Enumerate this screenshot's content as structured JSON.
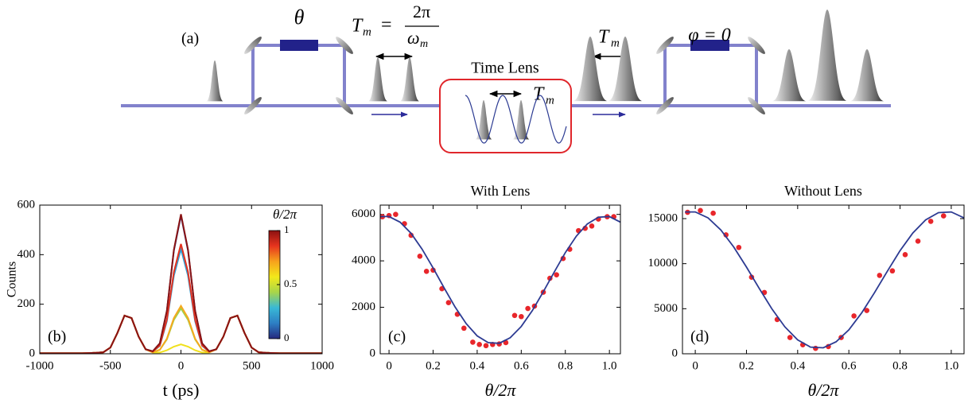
{
  "diagram": {
    "panel": "(a)",
    "theta": "θ",
    "formula": {
      "lhs": "T",
      "lhs_sub": "m",
      "equals": "=",
      "numerator": "2π",
      "denominator": "ω",
      "denominator_sub": "m"
    },
    "lens_title": "Time Lens",
    "lens_period": {
      "base": "T",
      "sub": "m"
    },
    "output_period": {
      "base": "T",
      "sub": "m"
    },
    "phase": "φ = 0"
  },
  "chart_data": [
    {
      "type": "line",
      "panel_label": "(b)",
      "xlabel": "t (ps)",
      "ylabel": "Counts",
      "x": [
        -1000,
        -950,
        -900,
        -850,
        -800,
        -750,
        -700,
        -650,
        -600,
        -550,
        -500,
        -450,
        -400,
        -350,
        -300,
        -250,
        -200,
        -150,
        -100,
        -50,
        0,
        50,
        100,
        150,
        200,
        250,
        300,
        350,
        400,
        450,
        500,
        550,
        600,
        650,
        700,
        750,
        800,
        850,
        900,
        950,
        1000
      ],
      "xlim": [
        -1000,
        1000
      ],
      "xticks": [
        -1000,
        -500,
        0,
        500,
        1000
      ],
      "ylim": [
        0,
        600
      ],
      "yticks": [
        0,
        200,
        400,
        600
      ],
      "colorbar": {
        "label": "θ/2π",
        "ticks": [
          0,
          0.5,
          1
        ],
        "colors": [
          "#262a7e",
          "#2d7fc4",
          "#39b9d6",
          "#a8d54a",
          "#f3e81a",
          "#f7a21c",
          "#e7341e",
          "#8b1111"
        ]
      },
      "series": [
        {
          "color": "#2a2c80",
          "values": [
            2,
            2,
            2,
            2,
            2,
            2,
            2,
            3,
            4,
            6,
            25,
            84,
            154,
            144,
            69,
            18,
            10,
            42,
            173,
            416,
            558,
            416,
            173,
            42,
            10,
            18,
            69,
            144,
            154,
            84,
            25,
            6,
            4,
            3,
            2,
            2,
            2,
            2,
            2,
            2,
            2
          ]
        },
        {
          "color": "#2e9fd6",
          "values": [
            2,
            2,
            2,
            2,
            2,
            2,
            2,
            3,
            4,
            6,
            25,
            84,
            154,
            144,
            69,
            18,
            9,
            32,
            132,
            315,
            423,
            315,
            132,
            32,
            9,
            18,
            69,
            144,
            154,
            84,
            25,
            6,
            4,
            3,
            2,
            2,
            2,
            2,
            2,
            2,
            2
          ]
        },
        {
          "color": "#9fd04c",
          "values": [
            2,
            2,
            2,
            2,
            2,
            2,
            2,
            3,
            4,
            6,
            25,
            84,
            154,
            144,
            69,
            18,
            6,
            16,
            58,
            137,
            183,
            137,
            58,
            16,
            6,
            18,
            69,
            144,
            154,
            84,
            25,
            6,
            4,
            3,
            2,
            2,
            2,
            2,
            2,
            2,
            2
          ]
        },
        {
          "color": "#f0e01c",
          "values": [
            2,
            2,
            2,
            2,
            2,
            2,
            2,
            3,
            4,
            6,
            25,
            84,
            154,
            144,
            69,
            18,
            5,
            5,
            14,
            29,
            38,
            29,
            14,
            5,
            5,
            18,
            69,
            144,
            154,
            84,
            25,
            6,
            4,
            3,
            2,
            2,
            2,
            2,
            2,
            2,
            2
          ]
        },
        {
          "color": "#f6a91e",
          "values": [
            2,
            2,
            2,
            2,
            2,
            2,
            2,
            3,
            4,
            6,
            25,
            84,
            154,
            144,
            69,
            18,
            6,
            16,
            61,
            144,
            193,
            144,
            61,
            16,
            6,
            18,
            69,
            144,
            154,
            84,
            25,
            6,
            4,
            3,
            2,
            2,
            2,
            2,
            2,
            2,
            2
          ]
        },
        {
          "color": "#e5321f",
          "values": [
            2,
            2,
            2,
            2,
            2,
            2,
            2,
            3,
            4,
            6,
            25,
            84,
            154,
            144,
            69,
            18,
            9,
            34,
            138,
            330,
            443,
            330,
            138,
            34,
            9,
            18,
            69,
            144,
            154,
            84,
            25,
            6,
            4,
            3,
            2,
            2,
            2,
            2,
            2,
            2,
            2
          ]
        },
        {
          "color": "#8a1414",
          "values": [
            2,
            2,
            2,
            2,
            2,
            2,
            2,
            3,
            4,
            6,
            25,
            84,
            154,
            144,
            69,
            18,
            10,
            42,
            174,
            420,
            563,
            420,
            174,
            42,
            10,
            18,
            69,
            144,
            154,
            84,
            25,
            6,
            4,
            3,
            2,
            2,
            2,
            2,
            2,
            2,
            2
          ]
        }
      ]
    },
    {
      "type": "scatter",
      "title": "With Lens",
      "panel_label": "(c)",
      "xlabel": "θ/2π",
      "xlim": [
        -0.04,
        1.05
      ],
      "xticks": [
        0,
        0.2,
        0.4,
        0.6,
        0.8,
        {
          "value": 1,
          "label": "1.0"
        }
      ],
      "ylim": [
        0,
        6400
      ],
      "yticks": [
        0,
        2000,
        4000,
        6000
      ],
      "series": [
        {
          "mode": "markers",
          "color": "#e8262b",
          "x": [
            -0.03,
            0.0,
            0.03,
            0.07,
            0.1,
            0.14,
            0.17,
            0.2,
            0.24,
            0.27,
            0.31,
            0.34,
            0.38,
            0.41,
            0.44,
            0.47,
            0.5,
            0.53,
            0.57,
            0.6,
            0.63,
            0.66,
            0.7,
            0.73,
            0.76,
            0.79,
            0.82,
            0.86,
            0.89,
            0.92,
            0.95,
            0.99,
            1.02
          ],
          "values": [
            5900,
            5950,
            6000,
            5600,
            5100,
            4200,
            3550,
            3600,
            2800,
            2200,
            1700,
            1100,
            500,
            400,
            350,
            400,
            420,
            480,
            1650,
            1600,
            1950,
            2050,
            2650,
            3250,
            3400,
            4100,
            4500,
            5300,
            5400,
            5500,
            5800,
            5900,
            5900
          ]
        },
        {
          "mode": "line",
          "color": "#2c3a92",
          "x": [
            -0.04,
            0,
            0.05,
            0.1,
            0.15,
            0.2,
            0.25,
            0.3,
            0.35,
            0.4,
            0.45,
            0.5,
            0.55,
            0.6,
            0.65,
            0.7,
            0.75,
            0.8,
            0.85,
            0.9,
            0.95,
            1.0,
            1.05
          ],
          "values": [
            5908,
            5908,
            5669,
            5185,
            4506,
            3694,
            2836,
            2008,
            1296,
            771,
            480,
            452,
            691,
            1175,
            1855,
            2666,
            3524,
            4352,
            5064,
            5589,
            5881,
            5908,
            5669
          ]
        }
      ]
    },
    {
      "type": "scatter",
      "title": "Without Lens",
      "panel_label": "(d)",
      "xlabel": "θ/2π",
      "xlim": [
        -0.05,
        1.05
      ],
      "xticks": [
        0,
        0.2,
        0.4,
        0.6,
        0.8,
        {
          "value": 1,
          "label": "1.0"
        }
      ],
      "ylim": [
        0,
        16500
      ],
      "yticks": [
        0,
        5000,
        10000,
        15000
      ],
      "series": [
        {
          "mode": "markers",
          "color": "#e8262b",
          "x": [
            -0.03,
            0.02,
            0.07,
            0.12,
            0.17,
            0.22,
            0.27,
            0.32,
            0.37,
            0.42,
            0.47,
            0.52,
            0.57,
            0.62,
            0.67,
            0.72,
            0.77,
            0.82,
            0.87,
            0.92,
            0.97
          ],
          "values": [
            15700,
            15900,
            15600,
            13200,
            11800,
            8500,
            6800,
            3800,
            1800,
            1000,
            600,
            800,
            1800,
            4200,
            4800,
            8700,
            9200,
            11000,
            12500,
            14700,
            15300
          ]
        },
        {
          "mode": "line",
          "color": "#2c3a92",
          "x": [
            -0.04,
            0,
            0.05,
            0.1,
            0.15,
            0.2,
            0.25,
            0.3,
            0.35,
            0.4,
            0.45,
            0.5,
            0.55,
            0.6,
            0.65,
            0.7,
            0.75,
            0.8,
            0.85,
            0.9,
            0.95,
            1.0,
            1.05
          ],
          "values": [
            15739,
            15739,
            15078,
            13740,
            11863,
            9621,
            7250,
            4962,
            2994,
            1542,
            737,
            661,
            1322,
            2660,
            4537,
            6779,
            9150,
            11438,
            13406,
            14858,
            15663,
            15739,
            15078
          ]
        }
      ]
    }
  ]
}
